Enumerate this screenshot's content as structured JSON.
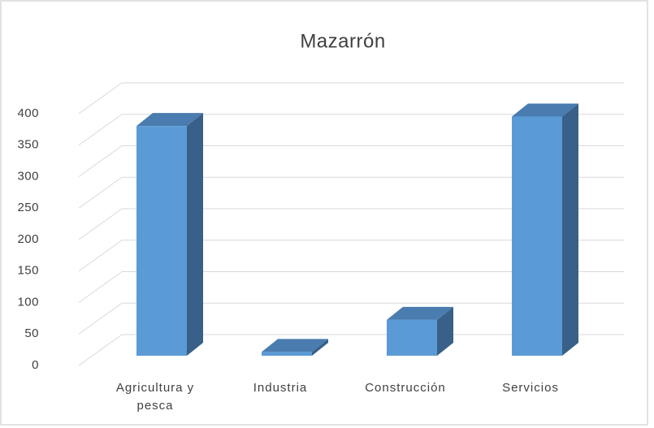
{
  "chart_data": {
    "type": "bar3d",
    "title": "Mazarrón",
    "categories": [
      "Agricultura y pesca",
      "Industria",
      "Construcción",
      "Servicios"
    ],
    "values": [
      365,
      6,
      57,
      380
    ],
    "color": "#5b9bd5",
    "ylim": [
      0,
      400
    ],
    "yticks": [
      0,
      50,
      100,
      150,
      200,
      250,
      300,
      350,
      400
    ],
    "grid": true
  }
}
